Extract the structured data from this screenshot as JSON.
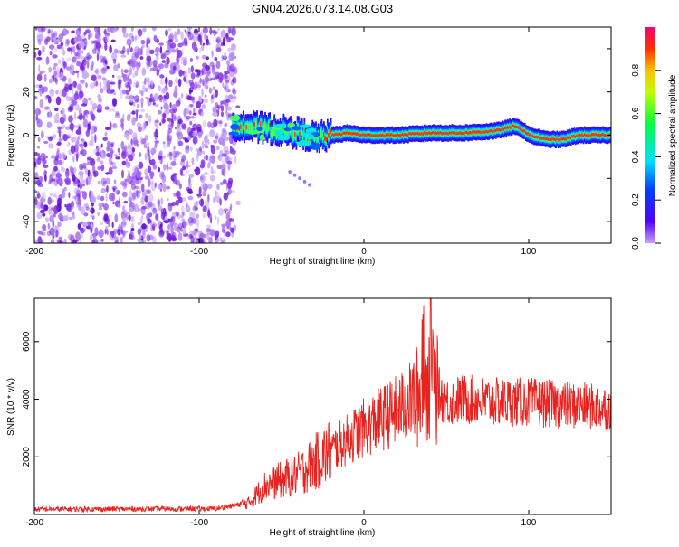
{
  "title": "GN04.2026.073.14.08.G03",
  "colors": {
    "snr_line": "#e8221e",
    "axis": "#000000",
    "scatter_noise": "#7a1fe0",
    "spec_low": "#1a00ff",
    "spec_mid": "#00ffcc",
    "spec_high": "#ff2020"
  },
  "chart_data": [
    {
      "type": "heatmap",
      "name": "spectrogram",
      "xlabel": "Height of straight line (km)",
      "ylabel": "Frequency (Hz)",
      "xlim": [
        -200,
        150
      ],
      "ylim": [
        -50,
        50
      ],
      "x_ticks": [
        -200,
        -100,
        0,
        100
      ],
      "x_tick_labels": [
        "-200",
        "-100",
        "0",
        "100"
      ],
      "y_ticks": [
        -40,
        -20,
        0,
        20,
        40
      ],
      "y_tick_labels": [
        "-40",
        "-20",
        "0",
        "20",
        "40"
      ],
      "noise_region_km": [
        -200,
        -78
      ],
      "signal_ridge": {
        "x": [
          -80,
          -70,
          -60,
          -50,
          -40,
          -30,
          -20,
          -10,
          0,
          20,
          40,
          60,
          80,
          85,
          90,
          95,
          100,
          105,
          110,
          120,
          130,
          140,
          150
        ],
        "y": [
          5,
          4,
          3,
          2,
          1,
          -1,
          0,
          1,
          0,
          0,
          1,
          1,
          2,
          3,
          4,
          3,
          0,
          -1,
          -2,
          -2,
          0,
          0,
          0
        ]
      },
      "colorbar": {
        "label": "Normalized spectral amplitude",
        "range": [
          0,
          1
        ],
        "ticks": [
          0.0,
          0.2,
          0.4,
          0.6,
          0.8
        ],
        "tick_labels": [
          "0.0",
          "0.2",
          "0.4",
          "0.6",
          "0.8"
        ]
      }
    },
    {
      "type": "line",
      "name": "snr",
      "xlabel": "Height of straight line (km)",
      "ylabel": "SNR (10 * v/v)",
      "xlim": [
        -200,
        150
      ],
      "ylim": [
        0,
        7500
      ],
      "x_ticks": [
        -200,
        -100,
        0,
        100
      ],
      "x_tick_labels": [
        "-200",
        "-100",
        "0",
        "100"
      ],
      "y_ticks": [
        2000,
        4000,
        6000
      ],
      "y_tick_labels": [
        "2000",
        "4000",
        "6000"
      ],
      "envelope_km": [
        -200,
        -90,
        -70,
        -60,
        -40,
        -20,
        0,
        20,
        35,
        40,
        50,
        60,
        80,
        100,
        120,
        150
      ],
      "envelope_snr": [
        180,
        200,
        400,
        1000,
        1400,
        2200,
        3000,
        3600,
        4200,
        4600,
        3900,
        4000,
        3900,
        3900,
        3800,
        3700
      ]
    }
  ]
}
